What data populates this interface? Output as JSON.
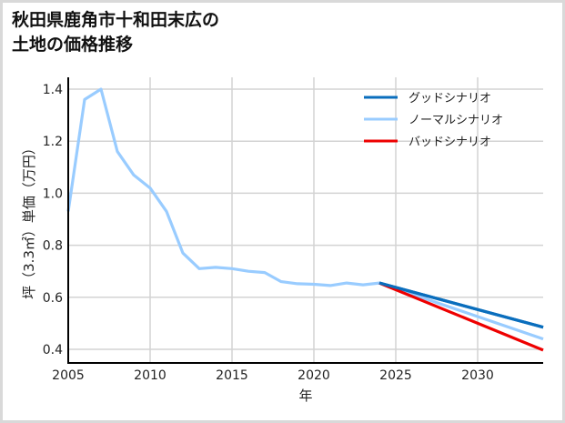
{
  "title_line1": "秋田県鹿角市十和田末広の",
  "title_line2": "土地の価格推移",
  "chart_data": {
    "type": "line",
    "title": "秋田県鹿角市十和田末広の土地の価格推移",
    "xlabel": "年",
    "ylabel": "坪（3.3㎡）単価（万円）",
    "xlim": [
      2005,
      2034
    ],
    "ylim": [
      0.35,
      1.45
    ],
    "xticks": [
      2005,
      2010,
      2015,
      2020,
      2025,
      2030
    ],
    "yticks": [
      0.4,
      0.6,
      0.8,
      1.0,
      1.2,
      1.4
    ],
    "ytick_labels": [
      "0.4",
      "0.6",
      "0.8",
      "1.0",
      "1.2",
      "1.4"
    ],
    "grid": true,
    "legend_position": "upper right",
    "series": [
      {
        "name": "グッドシナリオ",
        "color": "#0a6ebd",
        "x": [
          2024,
          2034
        ],
        "values": [
          0.655,
          0.485
        ]
      },
      {
        "name": "ノーマルシナリオ",
        "color": "#99ccff",
        "x": [
          2005,
          2006,
          2007,
          2008,
          2009,
          2010,
          2011,
          2012,
          2013,
          2014,
          2015,
          2016,
          2017,
          2018,
          2019,
          2020,
          2021,
          2022,
          2023,
          2024,
          2034
        ],
        "values": [
          0.93,
          1.36,
          1.4,
          1.16,
          1.07,
          1.02,
          0.93,
          0.77,
          0.71,
          0.715,
          0.71,
          0.7,
          0.695,
          0.66,
          0.652,
          0.65,
          0.645,
          0.655,
          0.648,
          0.655,
          0.44
        ]
      },
      {
        "name": "バッドシナリオ",
        "color": "#ee0000",
        "x": [
          2024,
          2034
        ],
        "values": [
          0.655,
          0.397
        ]
      }
    ]
  }
}
